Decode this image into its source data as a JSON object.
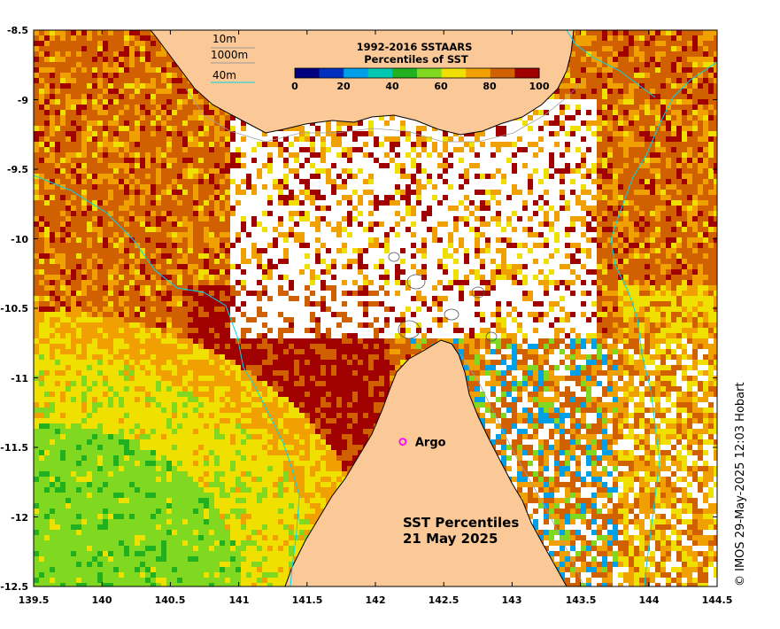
{
  "map": {
    "lon_range": [
      139.5,
      144.5
    ],
    "lat_range": [
      -12.5,
      -8.5
    ],
    "x_ticks": [
      "139.5",
      "140",
      "140.5",
      "141",
      "141.5",
      "142",
      "142.5",
      "143",
      "143.5",
      "144",
      "144.5"
    ],
    "y_ticks": [
      "-8.5",
      "-9",
      "-9.5",
      "-10",
      "-10.5",
      "-11",
      "-11.5",
      "-12",
      "-12.5"
    ]
  },
  "depth_legend": {
    "items": [
      {
        "label": "10m",
        "color": "#9a9a9a"
      },
      {
        "label": "1000m",
        "color": "#9a9a9a"
      },
      {
        "label": "40m",
        "color": "#00d8e8"
      }
    ]
  },
  "colorbar": {
    "title_line1": "1992-2016 SSTAARS",
    "title_line2": "Percentiles of SST",
    "ticks": [
      "0",
      "20",
      "40",
      "60",
      "80",
      "100"
    ],
    "colors": [
      "#000080",
      "#0030c0",
      "#00a0e8",
      "#00c8b0",
      "#20b020",
      "#80d820",
      "#f0e000",
      "#f0a000",
      "#d06000",
      "#a00000"
    ]
  },
  "argo": {
    "label": "Argo",
    "marker_color": "#ff00ff",
    "lon": 142.2,
    "lat": -11.3
  },
  "title": {
    "line1": "SST Percentiles",
    "line2": "21 May 2025"
  },
  "credit": "© IMOS 29-May-2025 12:03 Hobart",
  "colors": {
    "land": "#fbc898",
    "coast": "#000000",
    "depth_contour": "#a0a0a0",
    "shelf_contour": "#00d8e8"
  }
}
